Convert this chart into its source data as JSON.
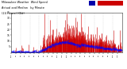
{
  "title_line1": "Milwaukee Weather  Wind Speed",
  "title_line2": "Actual and Median   by Minute",
  "title_line3": "(24 Hours) (Old)",
  "bg_color": "#ffffff",
  "bar_color": "#cc0000",
  "median_color": "#0000ff",
  "legend_actual_color": "#cc0000",
  "legend_median_color": "#0000aa",
  "ylim": [
    0,
    35
  ],
  "yticks": [
    5,
    10,
    15,
    20,
    25,
    30,
    35
  ],
  "num_points": 1440,
  "seed": 7
}
